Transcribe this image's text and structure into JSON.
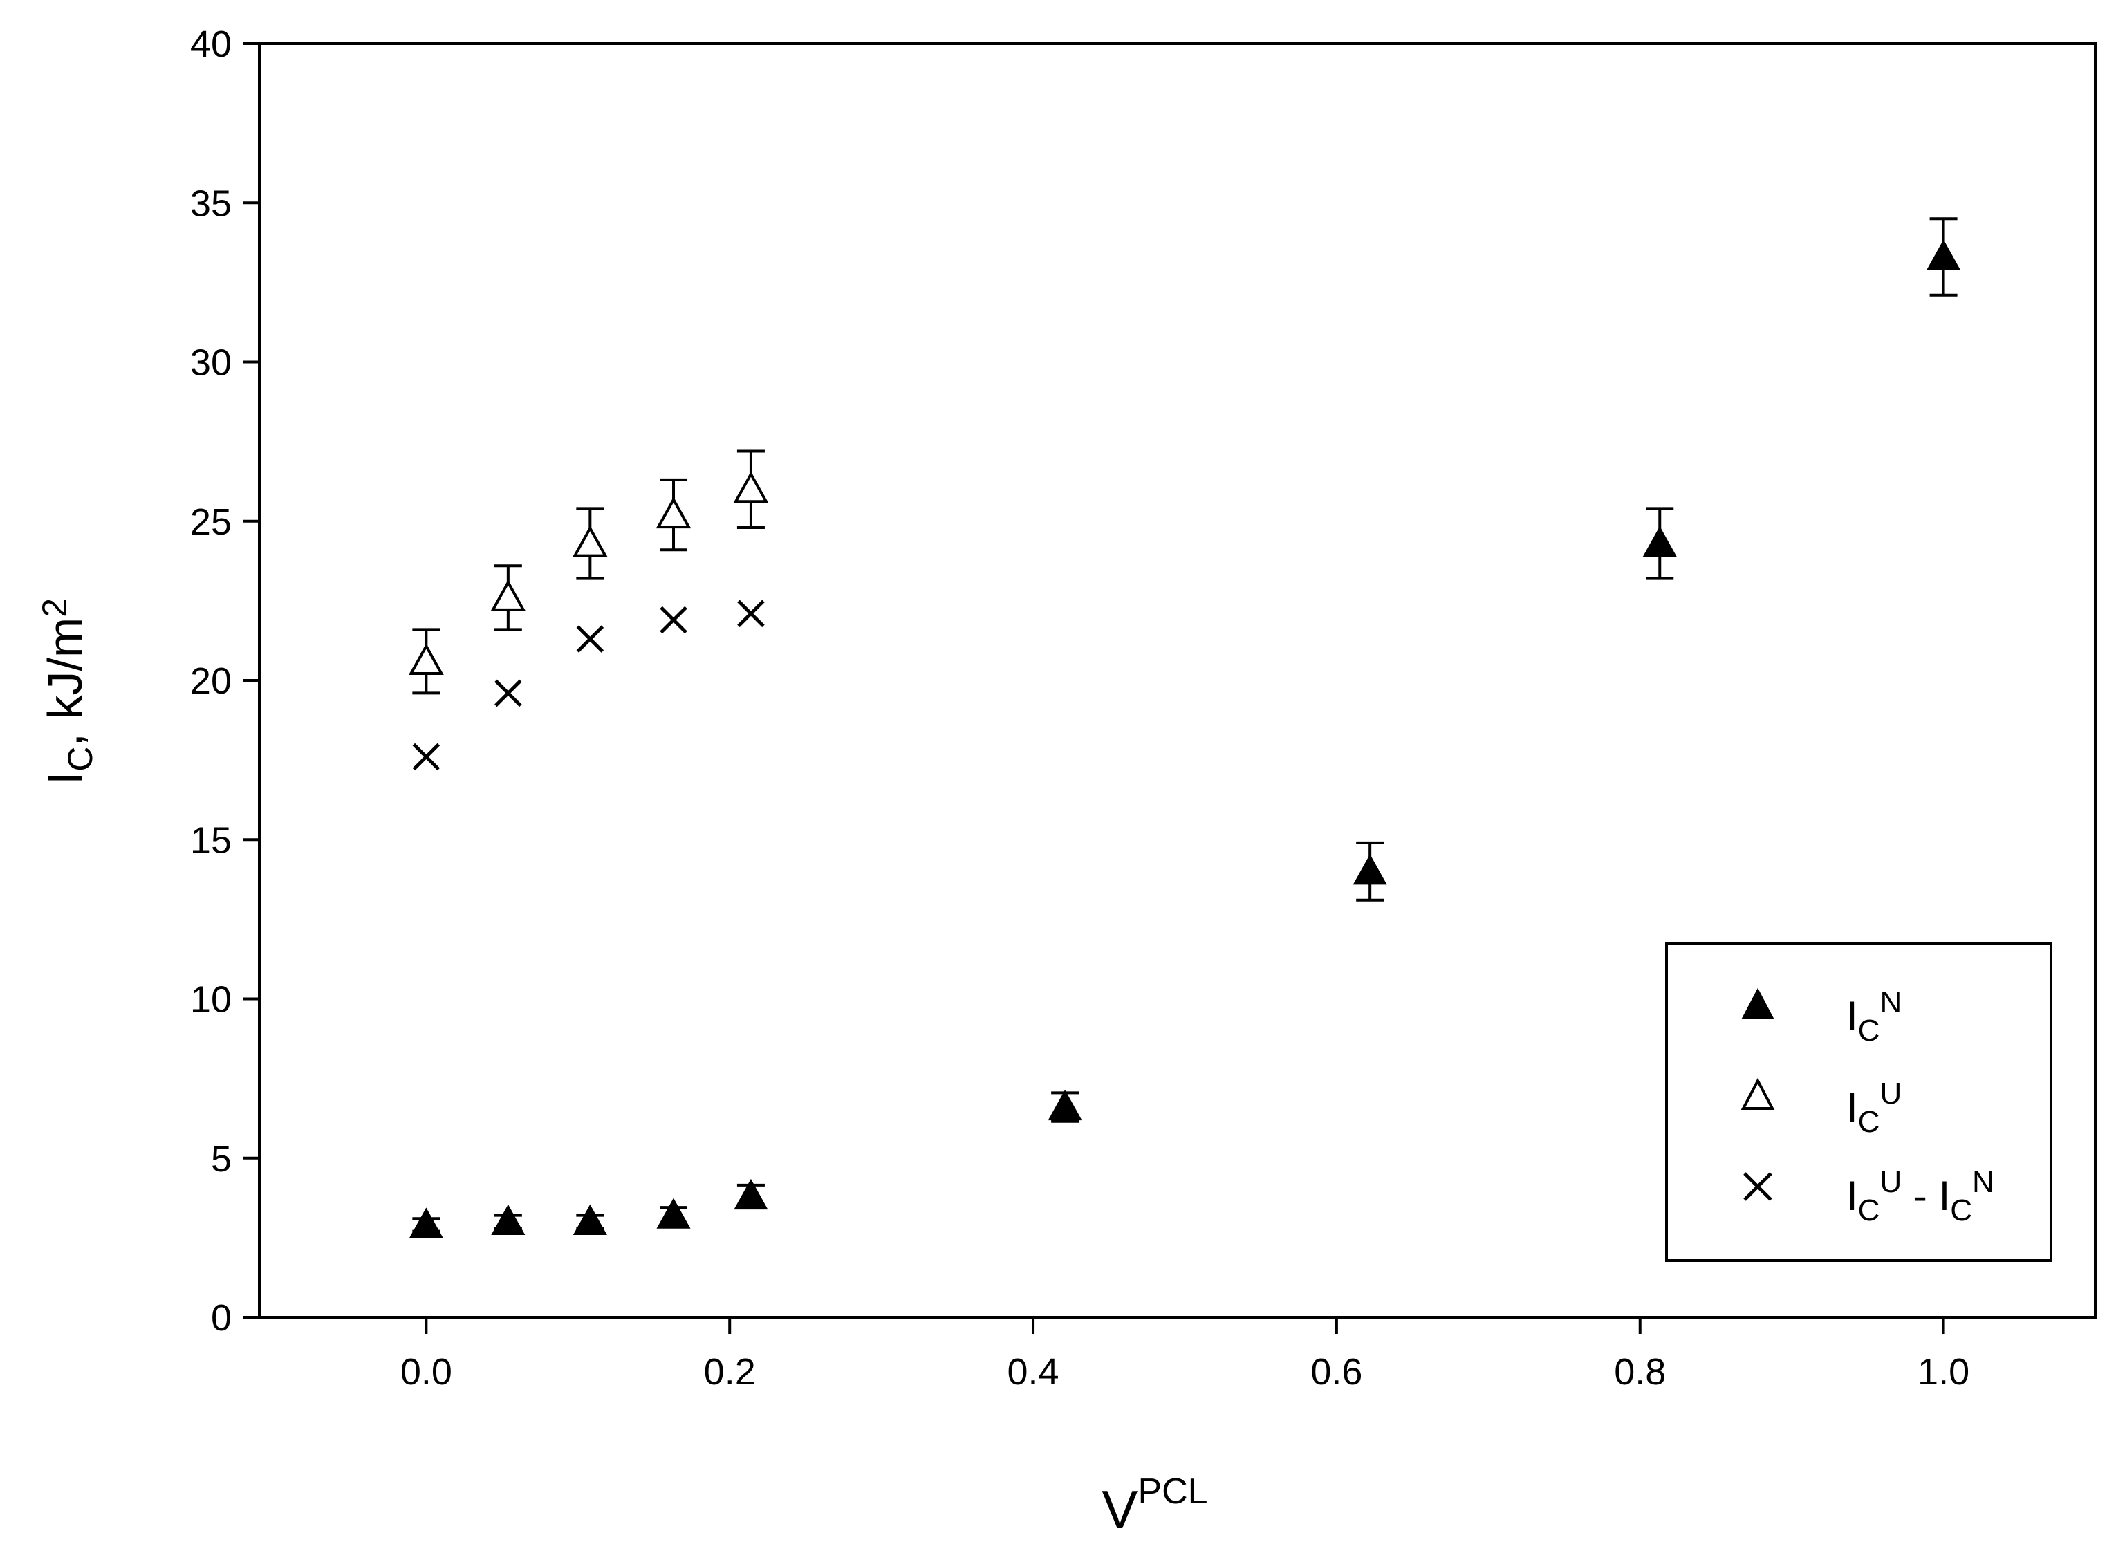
{
  "chart_data": {
    "type": "scatter",
    "title": "",
    "xlabel": {
      "base": "V",
      "sup": "PCL"
    },
    "ylabel": {
      "base": "I",
      "sub": "C",
      "rest": ", kJ/m",
      "sup": "2"
    },
    "xlim": [
      -0.11,
      1.1
    ],
    "ylim": [
      0,
      40
    ],
    "xticks": [
      0.0,
      0.2,
      0.4,
      0.6,
      0.8,
      1.0
    ],
    "xtick_labels": [
      "0.0",
      "0.2",
      "0.4",
      "0.6",
      "0.8",
      "1.0"
    ],
    "yticks": [
      0,
      5,
      10,
      15,
      20,
      25,
      30,
      35,
      40
    ],
    "ytick_labels": [
      "0",
      "5",
      "10",
      "15",
      "20",
      "25",
      "30",
      "35",
      "40"
    ],
    "grid": false,
    "legend_position": "bottom-right",
    "series": [
      {
        "key": "notched",
        "marker": "filled-triangle",
        "legend": {
          "base": "I",
          "sub": "C",
          "sup": "N"
        },
        "x": [
          0.0,
          0.054,
          0.108,
          0.163,
          0.214,
          0.421,
          0.622,
          0.813,
          1.0
        ],
        "y": [
          2.9,
          3.0,
          3.0,
          3.2,
          3.8,
          6.6,
          14.0,
          24.3,
          33.3
        ],
        "err": [
          0.2,
          0.2,
          0.2,
          0.25,
          0.35,
          0.45,
          0.9,
          1.1,
          1.2
        ]
      },
      {
        "key": "unnotched",
        "marker": "open-triangle",
        "legend": {
          "base": "I",
          "sub": "C",
          "sup": "U"
        },
        "x": [
          0.0,
          0.054,
          0.108,
          0.163,
          0.214
        ],
        "y": [
          20.6,
          22.6,
          24.3,
          25.2,
          26.0
        ],
        "err": [
          1.0,
          1.0,
          1.1,
          1.1,
          1.2
        ]
      },
      {
        "key": "difference",
        "marker": "cross",
        "legend": {
          "base": "I",
          "sub": "C",
          "sup": "U",
          "mid": " - ",
          "base2": "I",
          "sub2": "C",
          "sup2": "N"
        },
        "x": [
          0.0,
          0.054,
          0.108,
          0.163,
          0.214
        ],
        "y": [
          17.6,
          19.6,
          21.3,
          21.9,
          22.1
        ],
        "err": []
      }
    ]
  }
}
